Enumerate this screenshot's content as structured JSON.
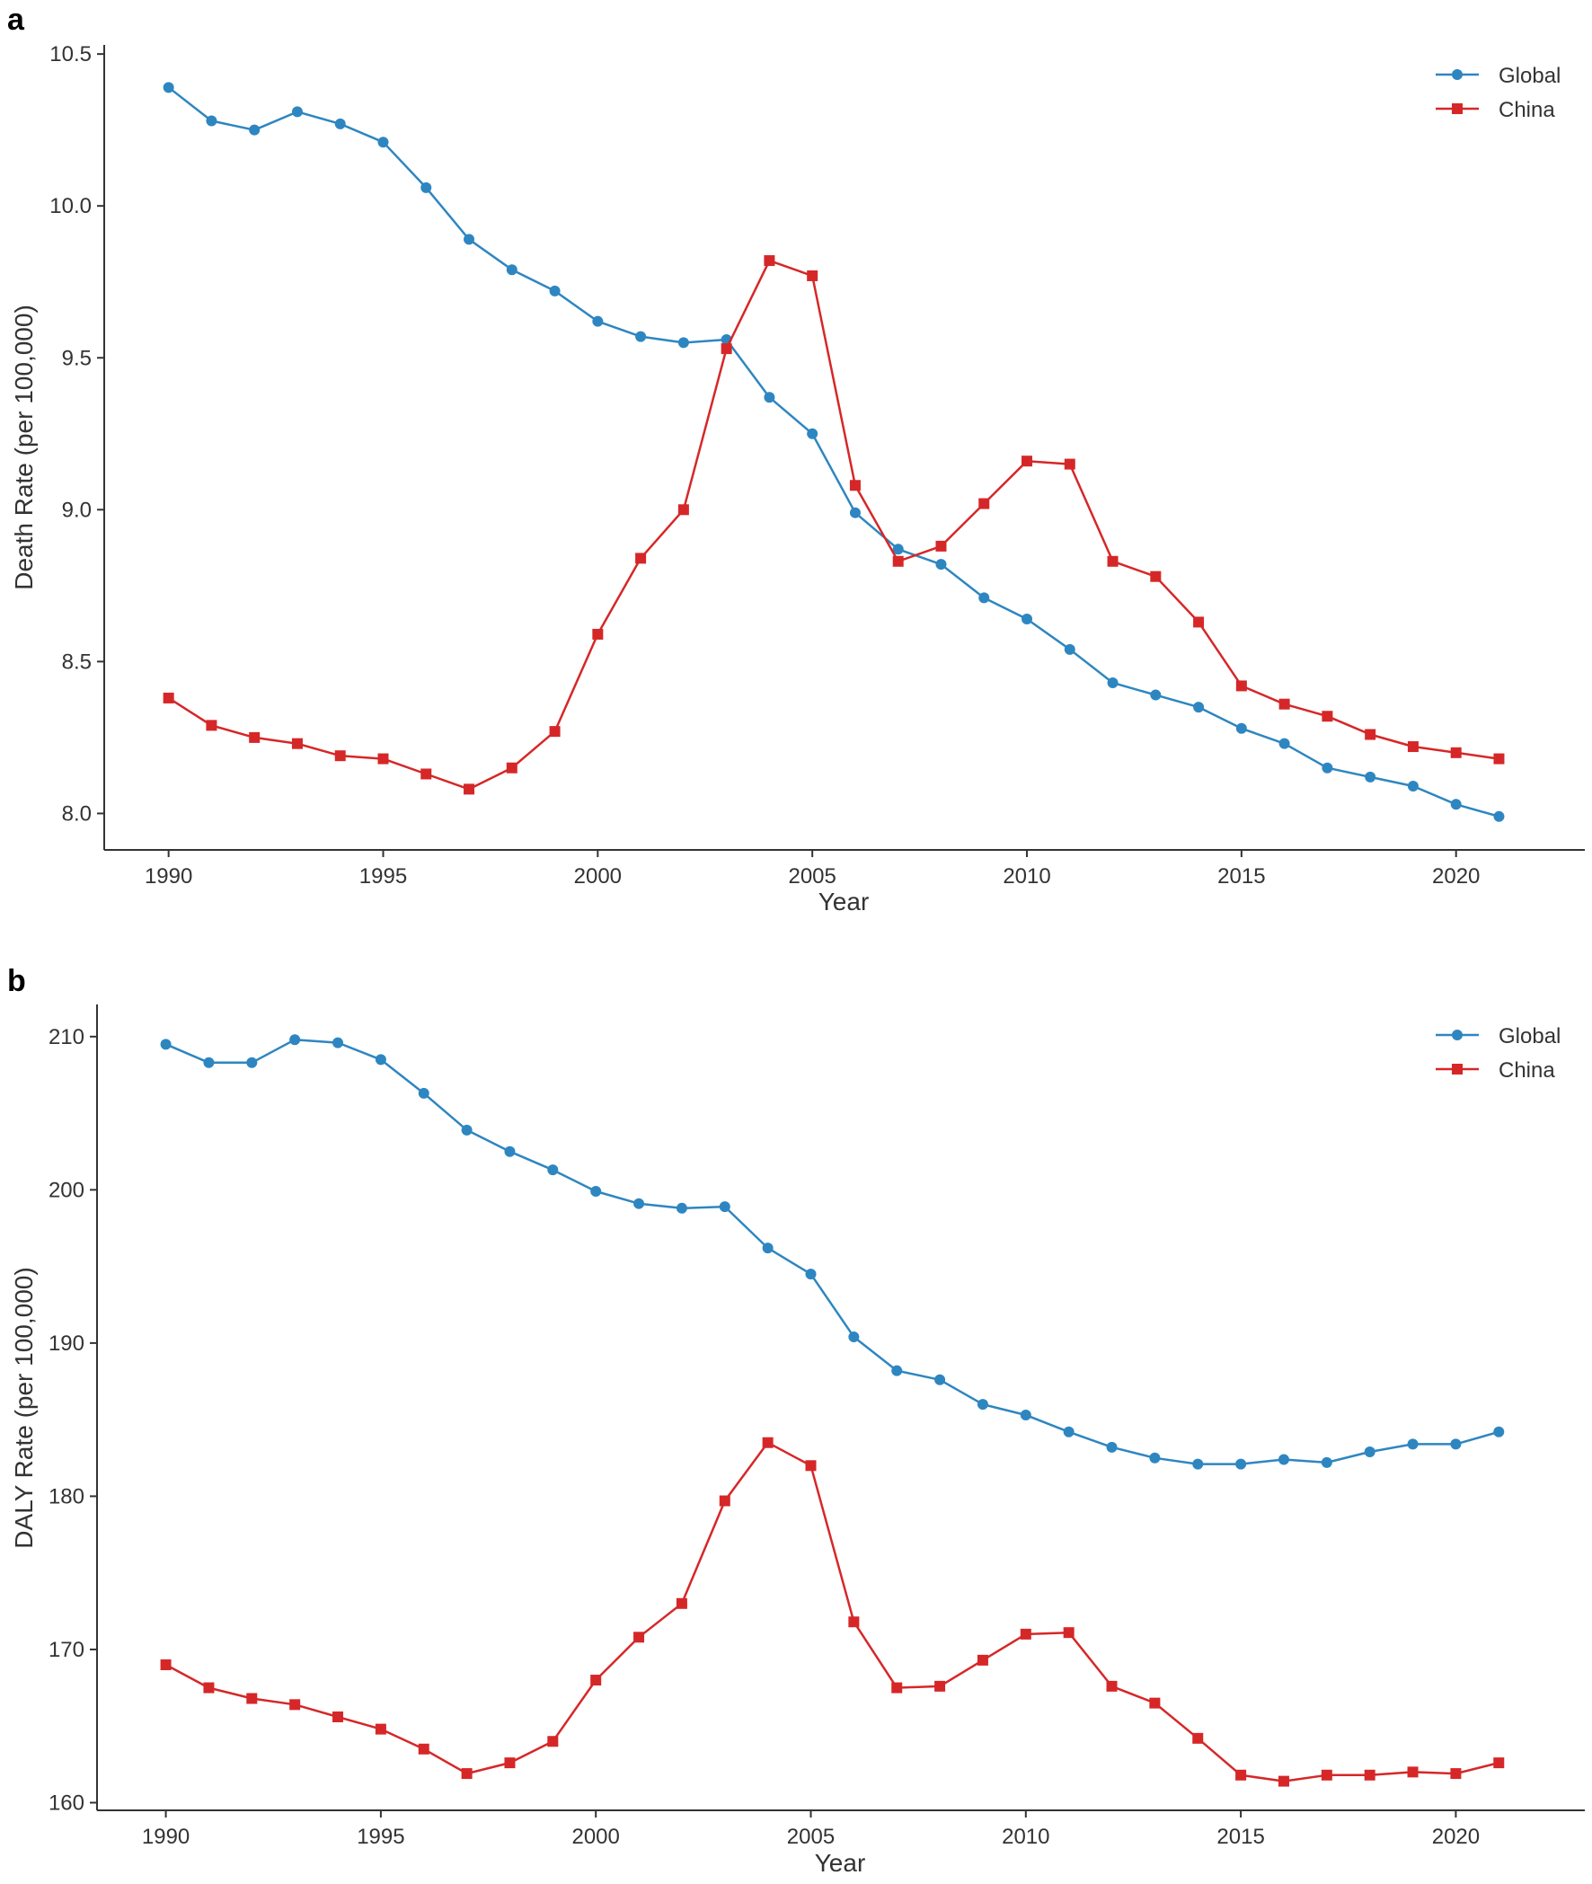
{
  "colors": {
    "global": "#2e86c1",
    "china": "#d62728",
    "axis": "#333333"
  },
  "chart_data": [
    {
      "type": "line",
      "panel_label": "a",
      "xlabel": "Year",
      "ylabel": "Death Rate (per 100,000)",
      "xlim": [
        1988.5,
        2023.0
      ],
      "ylim": [
        7.88,
        10.53
      ],
      "xticks": [
        1990,
        1995,
        2000,
        2005,
        2010,
        2015,
        2020
      ],
      "yticks": [
        8.0,
        8.5,
        9.0,
        9.5,
        10.0,
        10.5
      ],
      "ytick_labels": [
        "8.0",
        "8.5",
        "9.0",
        "9.5",
        "10.0",
        "10.5"
      ],
      "legend_position": "top-right",
      "x": [
        1990,
        1991,
        1992,
        1993,
        1994,
        1995,
        1996,
        1997,
        1998,
        1999,
        2000,
        2001,
        2002,
        2003,
        2004,
        2005,
        2006,
        2007,
        2008,
        2009,
        2010,
        2011,
        2012,
        2013,
        2014,
        2015,
        2016,
        2017,
        2018,
        2019,
        2020,
        2021
      ],
      "series": [
        {
          "name": "Global",
          "marker": "circle",
          "values": [
            10.39,
            10.28,
            10.25,
            10.31,
            10.27,
            10.21,
            10.06,
            9.89,
            9.79,
            9.72,
            9.62,
            9.57,
            9.55,
            9.56,
            9.37,
            9.25,
            8.99,
            8.87,
            8.82,
            8.71,
            8.64,
            8.54,
            8.43,
            8.39,
            8.35,
            8.28,
            8.23,
            8.15,
            8.12,
            8.09,
            8.03,
            7.99
          ]
        },
        {
          "name": "China",
          "marker": "square",
          "values": [
            8.38,
            8.29,
            8.25,
            8.23,
            8.19,
            8.18,
            8.13,
            8.08,
            8.15,
            8.27,
            8.59,
            8.84,
            9.0,
            9.53,
            9.82,
            9.77,
            9.08,
            8.83,
            8.88,
            9.02,
            9.16,
            9.15,
            8.83,
            8.78,
            8.63,
            8.42,
            8.36,
            8.32,
            8.26,
            8.22,
            8.2,
            8.18
          ]
        }
      ]
    },
    {
      "type": "line",
      "panel_label": "b",
      "xlabel": "Year",
      "ylabel": "DALY Rate (per 100,000)",
      "xlim": [
        1988.4,
        2023.0
      ],
      "ylim": [
        159.5,
        212.1
      ],
      "xticks": [
        1990,
        1995,
        2000,
        2005,
        2010,
        2015,
        2020
      ],
      "yticks": [
        160,
        170,
        180,
        190,
        200,
        210
      ],
      "ytick_labels": [
        "160",
        "170",
        "180",
        "190",
        "200",
        "210"
      ],
      "legend_position": "top-right",
      "x": [
        1990,
        1991,
        1992,
        1993,
        1994,
        1995,
        1996,
        1997,
        1998,
        1999,
        2000,
        2001,
        2002,
        2003,
        2004,
        2005,
        2006,
        2007,
        2008,
        2009,
        2010,
        2011,
        2012,
        2013,
        2014,
        2015,
        2016,
        2017,
        2018,
        2019,
        2020,
        2021
      ],
      "series": [
        {
          "name": "Global",
          "marker": "circle",
          "values": [
            209.5,
            208.3,
            208.3,
            209.8,
            209.6,
            208.5,
            206.3,
            203.9,
            202.5,
            201.3,
            199.9,
            199.1,
            198.8,
            198.9,
            196.2,
            194.5,
            190.4,
            188.2,
            187.6,
            186.0,
            185.3,
            184.2,
            183.2,
            182.5,
            182.1,
            182.1,
            182.4,
            182.2,
            182.9,
            183.4,
            183.4,
            184.2
          ]
        },
        {
          "name": "China",
          "marker": "square",
          "values": [
            169.0,
            167.5,
            166.8,
            166.4,
            165.6,
            164.8,
            163.5,
            161.9,
            162.6,
            164.0,
            168.0,
            170.8,
            173.0,
            179.7,
            183.5,
            182.0,
            171.8,
            167.5,
            167.6,
            169.3,
            171.0,
            171.1,
            167.6,
            166.5,
            164.2,
            161.8,
            161.4,
            161.8,
            161.8,
            162.0,
            161.9,
            162.6
          ]
        }
      ]
    }
  ]
}
